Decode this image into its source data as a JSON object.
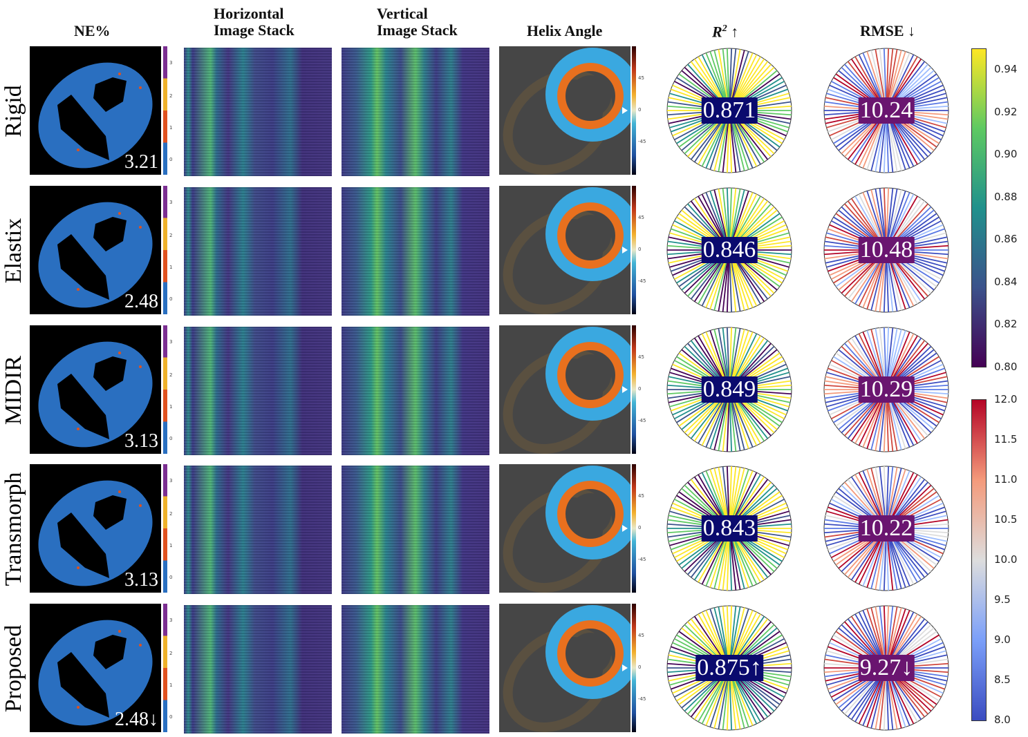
{
  "headers": {
    "ne": "NE%",
    "horizontal": "Horizontal\nImage Stack",
    "horizontal_l1": "Horizontal",
    "horizontal_l2": "Image Stack",
    "vertical_l1": "Vertical",
    "vertical_l2": "Image Stack",
    "helix": "Helix Angle",
    "r2": "R",
    "r2_sup": "2",
    "r2_arrow": "↑",
    "rmse": "RMSE ↓"
  },
  "ne_colorbar_ticks": [
    "0",
    "1",
    "2",
    "3"
  ],
  "helix_colorbar_ticks": [
    "45",
    "0",
    "-45"
  ],
  "rows": [
    {
      "method": "Rigid",
      "ne": "3.21",
      "r2": "0.871",
      "rmse": "10.24"
    },
    {
      "method": "Elastix",
      "ne": "2.48",
      "r2": "0.846",
      "rmse": "10.48"
    },
    {
      "method": "MIDIR",
      "ne": "3.13",
      "r2": "0.849",
      "rmse": "10.29"
    },
    {
      "method": "Transmorph",
      "ne": "3.13",
      "r2": "0.843",
      "rmse": "10.22"
    },
    {
      "method": "Proposed",
      "ne": "2.48↓",
      "r2": "0.875↑",
      "rmse": "9.27↓"
    }
  ],
  "r2_colorbar": {
    "ticks": [
      "0.94",
      "0.92",
      "0.90",
      "0.88",
      "0.86",
      "0.84",
      "0.82",
      "0.80"
    ],
    "min": 0.8,
    "max": 0.95,
    "colormap": "viridis"
  },
  "rmse_colorbar": {
    "ticks": [
      "12.0",
      "11.5",
      "11.0",
      "10.5",
      "10.0",
      "9.5",
      "9.0",
      "8.5",
      "8.0"
    ],
    "min": 8.0,
    "max": 12.0,
    "colormap": "coolwarm"
  },
  "colors": {
    "r2_label_bg": "#0a0a6e",
    "rmse_label_bg": "#6a1570",
    "ne_tissue": "#2a6fc0"
  }
}
